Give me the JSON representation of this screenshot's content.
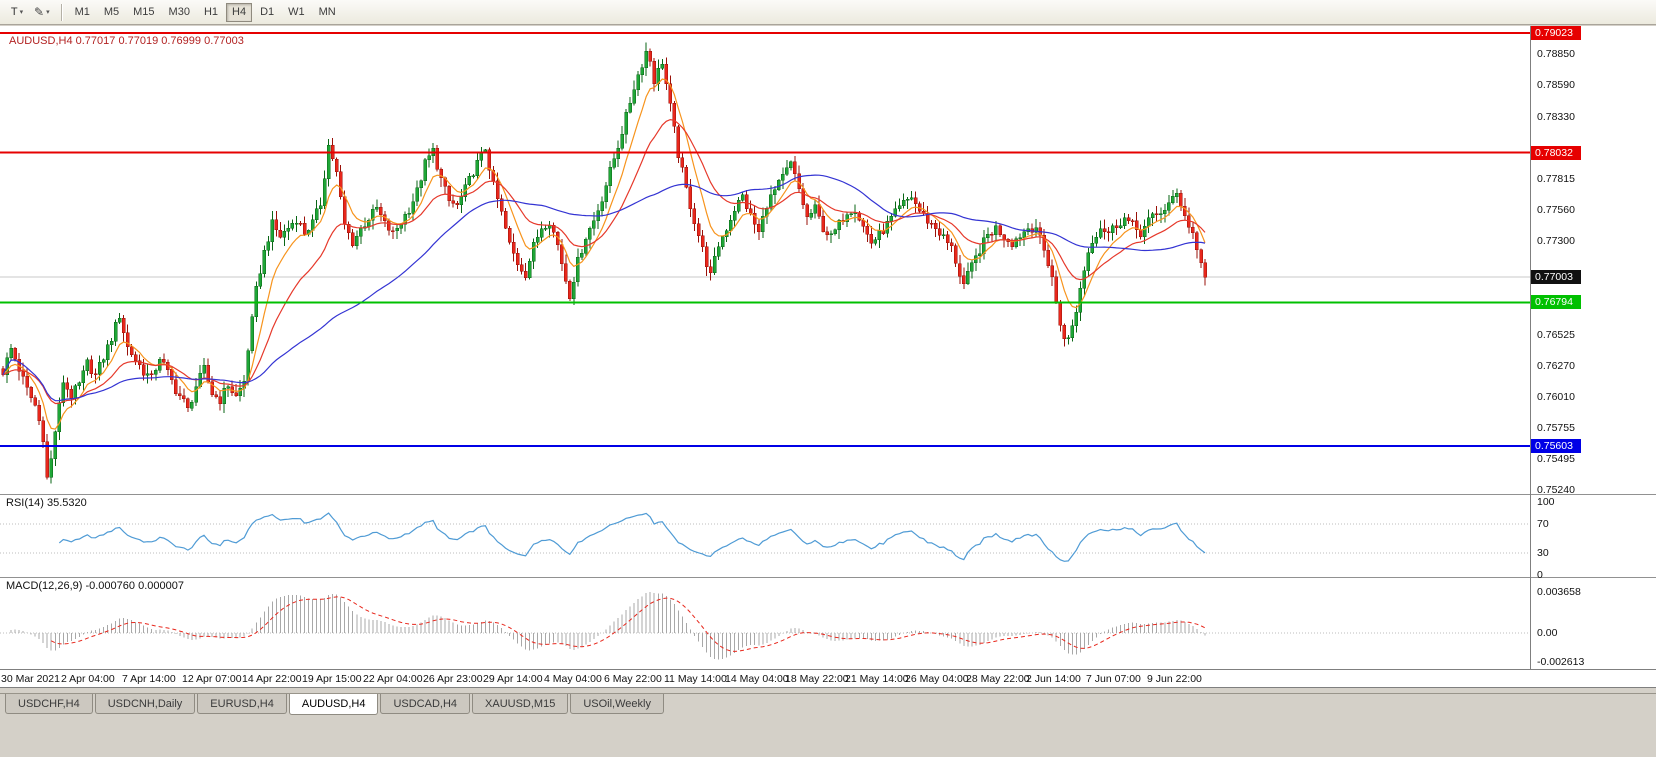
{
  "toolbar": {
    "text_tool_label": "T",
    "timeframes": [
      "M1",
      "M5",
      "M15",
      "M30",
      "H1",
      "H4",
      "D1",
      "W1",
      "MN"
    ],
    "active_timeframe": "H4"
  },
  "chart": {
    "title": "AUDUSD,H4 0.77017 0.77019 0.76999 0.77003"
  },
  "chart_data": {
    "type": "candlestick",
    "symbol": "AUDUSD",
    "timeframe": "H4",
    "ohlc": {
      "open": 0.77017,
      "high": 0.77019,
      "low": 0.76999,
      "close": 0.77003
    },
    "current_price": 0.77003,
    "ylim": [
      0.75207,
      0.79081
    ],
    "bars_total": 300,
    "x_label_step_bars": 15,
    "candle_up_color": "#1fa637",
    "candle_up_border": "#0a6616",
    "candle_down_color": "#e8271c",
    "candle_down_border": "#991109",
    "price_lines": [
      {
        "price": 0.79023,
        "label": "0.79023",
        "color": "#e60000",
        "width": 2
      },
      {
        "price": 0.78032,
        "label": "0.78032",
        "color": "#e60000",
        "width": 2
      },
      {
        "price": 0.77003,
        "label": "0.77003",
        "color": "#c9c9c9",
        "style": "current"
      },
      {
        "price": 0.76794,
        "label": "0.76794",
        "color": "#00c000",
        "width": 2
      },
      {
        "price": 0.75603,
        "label": "0.75603",
        "color": "#0000e6",
        "width": 2
      }
    ],
    "y_ticks": [
      "0.78850",
      "0.78590",
      "0.78330",
      "0.77815",
      "0.77560",
      "0.77300",
      "0.76525",
      "0.76270",
      "0.76010",
      "0.75755",
      "0.75495",
      "0.75240"
    ],
    "x_labels": [
      "30 Mar 2021",
      "2 Apr 04:00",
      "7 Apr 14:00",
      "12 Apr 07:00",
      "14 Apr 22:00",
      "19 Apr 15:00",
      "22 Apr 04:00",
      "26 Apr 23:00",
      "29 Apr 14:00",
      "4 May 04:00",
      "6 May 22:00",
      "11 May 14:00",
      "14 May 04:00",
      "18 May 22:00",
      "21 May 14:00",
      "26 May 04:00",
      "28 May 22:00",
      "2 Jun 14:00",
      "7 Jun 07:00",
      "9 Jun 22:00"
    ],
    "ma_lines": [
      {
        "name": "fast",
        "type": "ema",
        "period": 8,
        "color": "#f7941d"
      },
      {
        "name": "medium",
        "type": "ema",
        "period": 21,
        "color": "#e6392b"
      },
      {
        "name": "slow",
        "type": "sma",
        "period": 55,
        "color": "#3434d3"
      }
    ],
    "rsi": {
      "label": "RSI(14) 35.5320",
      "period": 14,
      "color": "#4f9bd5",
      "levels": [
        "100",
        "70",
        "30",
        "0"
      ],
      "level_lines": [
        70,
        30
      ]
    },
    "macd": {
      "label": "MACD(12,26,9) -0.000760 0.000007",
      "fast": 12,
      "slow": 26,
      "signal": 9,
      "y_ticks": [
        "0.003658",
        "0.00",
        "-0.002613"
      ],
      "hist_color": "#a8a8a8",
      "signal_color": "#e8271c"
    },
    "swing_path": [
      [
        0,
        0.7622
      ],
      [
        2,
        0.7641
      ],
      [
        4,
        0.7624
      ],
      [
        6,
        0.7607
      ],
      [
        8,
        0.7594
      ],
      [
        10,
        0.7568
      ],
      [
        11,
        0.7534
      ],
      [
        12,
        0.7549
      ],
      [
        13,
        0.7573
      ],
      [
        15,
        0.7614
      ],
      [
        17,
        0.7602
      ],
      [
        19,
        0.7611
      ],
      [
        21,
        0.7629
      ],
      [
        23,
        0.7619
      ],
      [
        25,
        0.7634
      ],
      [
        27,
        0.765
      ],
      [
        29,
        0.7669
      ],
      [
        31,
        0.7642
      ],
      [
        33,
        0.7632
      ],
      [
        35,
        0.7622
      ],
      [
        37,
        0.7616
      ],
      [
        39,
        0.7634
      ],
      [
        41,
        0.7621
      ],
      [
        43,
        0.7607
      ],
      [
        45,
        0.7597
      ],
      [
        46,
        0.759
      ],
      [
        48,
        0.761
      ],
      [
        50,
        0.7624
      ],
      [
        52,
        0.7604
      ],
      [
        54,
        0.7599
      ],
      [
        56,
        0.7611
      ],
      [
        58,
        0.7601
      ],
      [
        60,
        0.7614
      ],
      [
        61,
        0.7641
      ],
      [
        62,
        0.7664
      ],
      [
        63,
        0.7689
      ],
      [
        64,
        0.7706
      ],
      [
        65,
        0.7721
      ],
      [
        66,
        0.7733
      ],
      [
        67,
        0.7744
      ],
      [
        69,
        0.7734
      ],
      [
        71,
        0.7741
      ],
      [
        73,
        0.7749
      ],
      [
        75,
        0.7737
      ],
      [
        77,
        0.7745
      ],
      [
        79,
        0.7761
      ],
      [
        81,
        0.7809
      ],
      [
        82,
        0.7799
      ],
      [
        83,
        0.7786
      ],
      [
        85,
        0.7743
      ],
      [
        87,
        0.7729
      ],
      [
        89,
        0.774
      ],
      [
        91,
        0.7749
      ],
      [
        93,
        0.7757
      ],
      [
        95,
        0.7744
      ],
      [
        97,
        0.7736
      ],
      [
        99,
        0.7746
      ],
      [
        101,
        0.7757
      ],
      [
        103,
        0.7771
      ],
      [
        105,
        0.7794
      ],
      [
        107,
        0.7805
      ],
      [
        109,
        0.7781
      ],
      [
        111,
        0.7763
      ],
      [
        113,
        0.7759
      ],
      [
        115,
        0.7773
      ],
      [
        117,
        0.7788
      ],
      [
        119,
        0.7801
      ],
      [
        120,
        0.7807
      ],
      [
        122,
        0.7776
      ],
      [
        124,
        0.7753
      ],
      [
        126,
        0.7727
      ],
      [
        128,
        0.7712
      ],
      [
        130,
        0.7703
      ],
      [
        132,
        0.7726
      ],
      [
        134,
        0.7742
      ],
      [
        136,
        0.7747
      ],
      [
        138,
        0.7727
      ],
      [
        140,
        0.7698
      ],
      [
        141,
        0.7686
      ],
      [
        143,
        0.7713
      ],
      [
        145,
        0.7734
      ],
      [
        147,
        0.7747
      ],
      [
        149,
        0.7766
      ],
      [
        151,
        0.7788
      ],
      [
        153,
        0.7809
      ],
      [
        155,
        0.7833
      ],
      [
        157,
        0.7858
      ],
      [
        159,
        0.7877
      ],
      [
        160,
        0.7887
      ],
      [
        161,
        0.788
      ],
      [
        162,
        0.7863
      ],
      [
        163,
        0.7871
      ],
      [
        164,
        0.7879
      ],
      [
        166,
        0.7841
      ],
      [
        168,
        0.7802
      ],
      [
        170,
        0.7773
      ],
      [
        172,
        0.7747
      ],
      [
        174,
        0.7723
      ],
      [
        176,
        0.7701
      ],
      [
        178,
        0.7727
      ],
      [
        180,
        0.7741
      ],
      [
        182,
        0.7757
      ],
      [
        184,
        0.7767
      ],
      [
        186,
        0.7751
      ],
      [
        188,
        0.7737
      ],
      [
        190,
        0.7761
      ],
      [
        193,
        0.7777
      ],
      [
        196,
        0.7794
      ],
      [
        198,
        0.7773
      ],
      [
        200,
        0.7749
      ],
      [
        202,
        0.7757
      ],
      [
        204,
        0.7741
      ],
      [
        206,
        0.7733
      ],
      [
        208,
        0.7744
      ],
      [
        210,
        0.7755
      ],
      [
        212,
        0.7757
      ],
      [
        214,
        0.7742
      ],
      [
        216,
        0.7729
      ],
      [
        218,
        0.7735
      ],
      [
        220,
        0.7744
      ],
      [
        222,
        0.7753
      ],
      [
        224,
        0.7761
      ],
      [
        226,
        0.7767
      ],
      [
        228,
        0.7755
      ],
      [
        230,
        0.7747
      ],
      [
        232,
        0.7741
      ],
      [
        234,
        0.7733
      ],
      [
        236,
        0.7724
      ],
      [
        238,
        0.7703
      ],
      [
        239,
        0.7694
      ],
      [
        241,
        0.7709
      ],
      [
        243,
        0.7723
      ],
      [
        245,
        0.7735
      ],
      [
        247,
        0.7741
      ],
      [
        249,
        0.7734
      ],
      [
        251,
        0.7729
      ],
      [
        253,
        0.7735
      ],
      [
        255,
        0.7741
      ],
      [
        257,
        0.7742
      ],
      [
        258,
        0.7731
      ],
      [
        259,
        0.7722
      ],
      [
        260,
        0.7712
      ],
      [
        261,
        0.7701
      ],
      [
        262,
        0.7678
      ],
      [
        263,
        0.7661
      ],
      [
        264,
        0.7652
      ],
      [
        265,
        0.7648
      ],
      [
        266,
        0.7659
      ],
      [
        267,
        0.7673
      ],
      [
        268,
        0.7691
      ],
      [
        269,
        0.7707
      ],
      [
        270,
        0.7721
      ],
      [
        271,
        0.7731
      ],
      [
        273,
        0.7742
      ],
      [
        275,
        0.7737
      ],
      [
        277,
        0.7744
      ],
      [
        279,
        0.7749
      ],
      [
        281,
        0.7743
      ],
      [
        283,
        0.7737
      ],
      [
        285,
        0.7747
      ],
      [
        287,
        0.7752
      ],
      [
        289,
        0.7757
      ],
      [
        291,
        0.7764
      ],
      [
        292,
        0.7769
      ],
      [
        293,
        0.7761
      ],
      [
        294,
        0.7753
      ],
      [
        295,
        0.7742
      ],
      [
        296,
        0.7737
      ],
      [
        297,
        0.7723
      ],
      [
        298,
        0.7712
      ],
      [
        299,
        0.77003
      ]
    ]
  },
  "bottom_tabs": {
    "items": [
      {
        "label": "USDCHF,H4"
      },
      {
        "label": "USDCNH,Daily"
      },
      {
        "label": "EURUSD,H4"
      },
      {
        "label": "AUDUSD,H4"
      },
      {
        "label": "USDCAD,H4"
      },
      {
        "label": "XAUUSD,M15"
      },
      {
        "label": "USOil,Weekly"
      }
    ],
    "active": "AUDUSD,H4"
  }
}
